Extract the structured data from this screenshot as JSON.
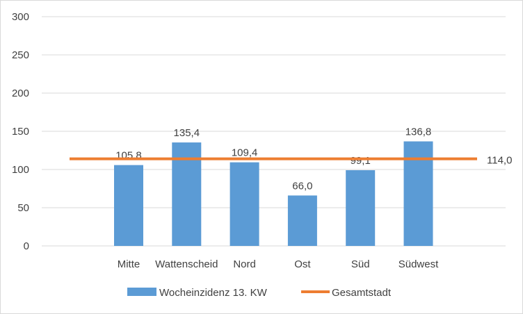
{
  "chart_data": {
    "type": "bar",
    "categories": [
      "Mitte",
      "Wattenscheid",
      "Nord",
      "Ost",
      "Süd",
      "Südwest"
    ],
    "series": [
      {
        "name": "Wocheinzidenz 13. KW",
        "type": "bar",
        "values": [
          105.8,
          135.4,
          109.4,
          66.0,
          99.1,
          136.8
        ],
        "labels": [
          "105,8",
          "135,4",
          "109,4",
          "66,0",
          "99,1",
          "136,8"
        ],
        "color": "#5b9bd5"
      },
      {
        "name": "Gesamtstadt",
        "type": "line",
        "value": 114.0,
        "label": "114,0",
        "color": "#ed7d31"
      }
    ],
    "ylim": [
      0,
      300
    ],
    "yticks": [
      "0",
      "50",
      "100",
      "150",
      "200",
      "250",
      "300"
    ],
    "grid": true,
    "legend": "bottom",
    "title": "",
    "xlabel": "",
    "ylabel": ""
  }
}
